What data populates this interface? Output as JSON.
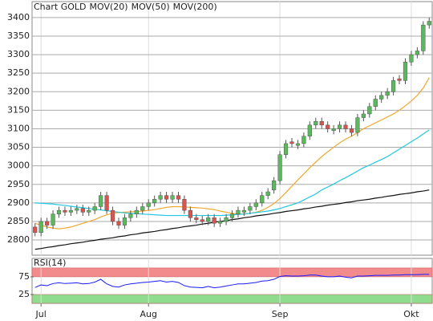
{
  "chart_data": [
    {
      "type": "candlestick",
      "title": "Chart GOLD",
      "categories": [
        null,
        "Jul",
        null,
        null,
        null,
        null,
        null,
        null,
        null,
        null,
        null,
        null,
        null,
        null,
        null,
        null,
        null,
        null,
        null,
        "Aug",
        null,
        null,
        null,
        null,
        null,
        null,
        null,
        null,
        null,
        null,
        null,
        null,
        null,
        null,
        null,
        null,
        null,
        null,
        null,
        null,
        null,
        "Sep",
        null,
        null,
        null,
        null,
        null,
        null,
        null,
        null,
        null,
        null,
        null,
        null,
        null,
        null,
        null,
        null,
        null,
        null,
        null,
        null,
        null,
        "Okt",
        null,
        null,
        null
      ],
      "open": [
        2835,
        2820,
        2850,
        2840,
        2870,
        2880,
        2875,
        2880,
        2885,
        2875,
        2880,
        2890,
        2920,
        2880,
        2850,
        2840,
        2860,
        2870,
        2880,
        2890,
        2900,
        2910,
        2920,
        2910,
        2920,
        2910,
        2880,
        2860,
        2855,
        2850,
        2860,
        2845,
        2850,
        2860,
        2870,
        2875,
        2880,
        2890,
        2900,
        2920,
        2935,
        2960,
        3030,
        3065,
        3055,
        3060,
        3080,
        3110,
        3120,
        3110,
        3095,
        3100,
        3110,
        3100,
        3090,
        3130,
        3140,
        3160,
        3180,
        3190,
        3200,
        3235,
        3230,
        3280,
        3300,
        3310,
        3380
      ],
      "high": [
        2845,
        2860,
        2860,
        2880,
        2890,
        2890,
        2890,
        2895,
        2895,
        2890,
        2900,
        2930,
        2930,
        2890,
        2860,
        2870,
        2880,
        2890,
        2900,
        2910,
        2920,
        2930,
        2930,
        2930,
        2930,
        2920,
        2890,
        2870,
        2865,
        2870,
        2870,
        2860,
        2870,
        2880,
        2890,
        2890,
        2900,
        2910,
        2930,
        2940,
        2970,
        3040,
        3070,
        3075,
        3070,
        3090,
        3120,
        3130,
        3130,
        3120,
        3110,
        3120,
        3120,
        3110,
        3140,
        3150,
        3170,
        3190,
        3200,
        3210,
        3240,
        3245,
        3290,
        3310,
        3320,
        3390,
        3400
      ],
      "low": [
        2810,
        2810,
        2830,
        2830,
        2860,
        2865,
        2865,
        2870,
        2865,
        2865,
        2870,
        2880,
        2870,
        2840,
        2830,
        2830,
        2850,
        2860,
        2870,
        2880,
        2890,
        2900,
        2900,
        2900,
        2900,
        2870,
        2850,
        2845,
        2840,
        2840,
        2835,
        2835,
        2840,
        2850,
        2860,
        2865,
        2870,
        2880,
        2890,
        2910,
        2925,
        2950,
        3020,
        3050,
        3045,
        3050,
        3070,
        3100,
        3100,
        3090,
        3085,
        3090,
        3090,
        3080,
        3080,
        3120,
        3130,
        3150,
        3170,
        3180,
        3190,
        3220,
        3220,
        3270,
        3290,
        3300,
        3370
      ],
      "close": [
        2820,
        2850,
        2840,
        2870,
        2880,
        2875,
        2880,
        2885,
        2875,
        2880,
        2890,
        2920,
        2880,
        2850,
        2840,
        2860,
        2870,
        2880,
        2890,
        2900,
        2910,
        2920,
        2910,
        2920,
        2910,
        2880,
        2860,
        2855,
        2850,
        2860,
        2845,
        2850,
        2860,
        2870,
        2880,
        2880,
        2890,
        2900,
        2920,
        2930,
        2960,
        3030,
        3060,
        3060,
        3060,
        3080,
        3110,
        3120,
        3110,
        3100,
        3100,
        3110,
        3100,
        3090,
        3130,
        3140,
        3160,
        3180,
        3190,
        3200,
        3230,
        3230,
        3280,
        3300,
        3310,
        3380,
        3390
      ],
      "up_color": "#5cb85c",
      "down_color": "#d9534f",
      "series": [
        {
          "name": "MOV(20)",
          "color": "#f0a830",
          "values": [
            2845,
            2840,
            2835,
            2832,
            2830,
            2832,
            2835,
            2840,
            2845,
            2850,
            2855,
            2862,
            2868,
            2872,
            2874,
            2875,
            2876,
            2877,
            2878,
            2880,
            2882,
            2885,
            2888,
            2890,
            2890,
            2889,
            2888,
            2887,
            2886,
            2884,
            2882,
            2878,
            2875,
            2872,
            2870,
            2870,
            2872,
            2875,
            2880,
            2888,
            2898,
            2912,
            2928,
            2945,
            2962,
            2978,
            2995,
            3010,
            3025,
            3038,
            3050,
            3062,
            3072,
            3080,
            3090,
            3100,
            3108,
            3116,
            3124,
            3132,
            3140,
            3150,
            3162,
            3175,
            3190,
            3210,
            3238
          ]
        },
        {
          "name": "MOV(50)",
          "color": "#22c8e0",
          "values": [
            2900,
            2899,
            2898,
            2897,
            2895,
            2893,
            2891,
            2889,
            2887,
            2885,
            2883,
            2881,
            2879,
            2877,
            2875,
            2873,
            2872,
            2871,
            2870,
            2869,
            2868,
            2867,
            2866,
            2866,
            2866,
            2866,
            2866,
            2866,
            2866,
            2866,
            2866,
            2866,
            2867,
            2868,
            2869,
            2870,
            2872,
            2874,
            2876,
            2878,
            2881,
            2885,
            2890,
            2895,
            2900,
            2908,
            2916,
            2924,
            2935,
            2943,
            2951,
            2960,
            2968,
            2977,
            2986,
            2995,
            3002,
            3010,
            3017,
            3025,
            3035,
            3045,
            3055,
            3065,
            3075,
            3086,
            3097
          ]
        },
        {
          "name": "MOV(200)",
          "color": "#111111",
          "values": [
            2775,
            2777,
            2780,
            2782,
            2785,
            2787,
            2790,
            2792,
            2794,
            2797,
            2799,
            2802,
            2804,
            2806,
            2809,
            2811,
            2814,
            2816,
            2819,
            2821,
            2823,
            2826,
            2828,
            2831,
            2833,
            2836,
            2838,
            2840,
            2843,
            2845,
            2848,
            2850,
            2852,
            2855,
            2857,
            2860,
            2862,
            2865,
            2867,
            2869,
            2872,
            2874,
            2877,
            2879,
            2881,
            2884,
            2886,
            2889,
            2891,
            2894,
            2896,
            2898,
            2901,
            2903,
            2906,
            2908,
            2910,
            2913,
            2915,
            2918,
            2920,
            2923,
            2925,
            2927,
            2930,
            2932,
            2935
          ]
        }
      ],
      "ylim": [
        2759,
        3443
      ],
      "yticks": [
        2800,
        2850,
        2900,
        2950,
        3000,
        3050,
        3100,
        3150,
        3200,
        3250,
        3300,
        3350,
        3400
      ],
      "grid": true
    },
    {
      "type": "line",
      "title": "RSI(14)",
      "values": [
        45,
        52,
        50,
        56,
        58,
        56,
        57,
        58,
        55,
        56,
        60,
        68,
        55,
        48,
        46,
        52,
        55,
        57,
        59,
        60,
        62,
        64,
        60,
        62,
        59,
        50,
        46,
        45,
        44,
        48,
        44,
        46,
        49,
        52,
        55,
        55,
        57,
        59,
        63,
        64,
        68,
        76,
        78,
        77,
        77,
        78,
        80,
        80,
        77,
        75,
        75,
        77,
        74,
        72,
        77,
        77,
        78,
        79,
        79,
        79,
        80,
        80,
        81,
        81,
        81,
        82,
        82
      ],
      "color": "#1a1aff",
      "bands": [
        {
          "from": 75,
          "to": 100,
          "color": "#f28c8c"
        },
        {
          "from": 0,
          "to": 25,
          "color": "#8fdc8f"
        }
      ],
      "ylim": [
        0,
        127
      ],
      "yticks": [
        25,
        75
      ]
    }
  ]
}
